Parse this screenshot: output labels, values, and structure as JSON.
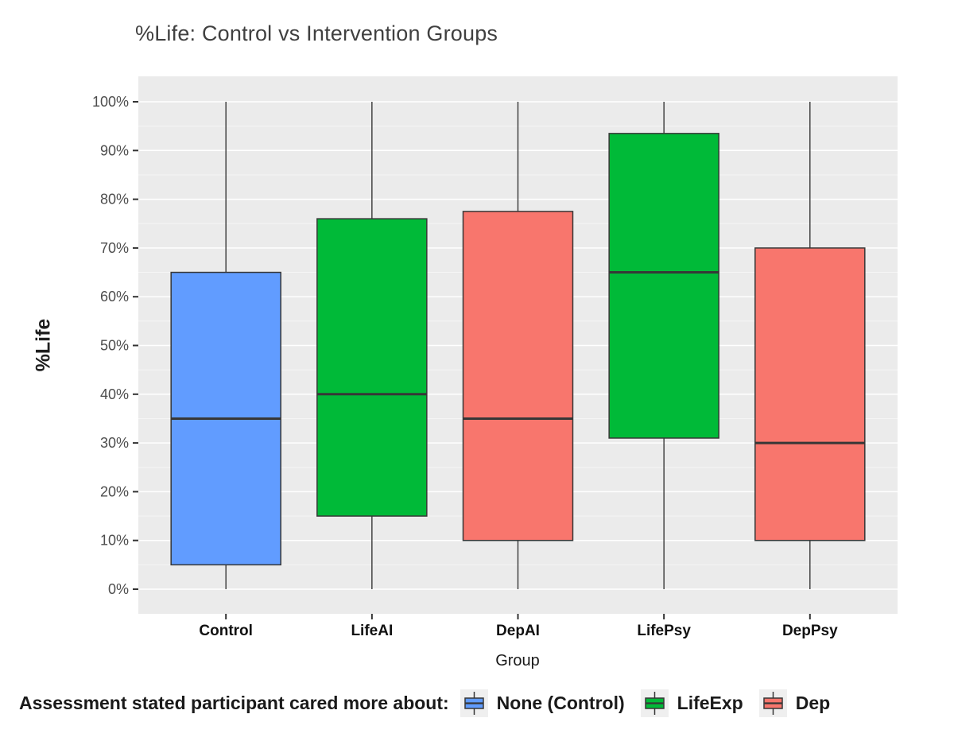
{
  "title": "%Life: Control vs Intervention Groups",
  "chart_data": {
    "type": "boxplot",
    "title": "%Life: Control vs Intervention Groups",
    "xlabel": "Group",
    "ylabel": "%Life",
    "categories": [
      "Control",
      "LifeAI",
      "DepAI",
      "LifePsy",
      "DepPsy"
    ],
    "y_ticks": [
      "0%",
      "10%",
      "20%",
      "30%",
      "40%",
      "50%",
      "60%",
      "70%",
      "80%",
      "90%",
      "100%"
    ],
    "ylim": [
      0,
      100
    ],
    "grid": "major white lines every 10%, faint minor lines every 5%, gray panel",
    "legend_position": "bottom",
    "boxes": [
      {
        "group": "Control",
        "condition": "None (Control)",
        "fill": "#619CFF",
        "whisker_low": 0,
        "q1": 5,
        "median": 35,
        "q3": 65,
        "whisker_high": 100
      },
      {
        "group": "LifeAI",
        "condition": "LifeExp",
        "fill": "#00BA38",
        "whisker_low": 0,
        "q1": 15,
        "median": 40,
        "q3": 76,
        "whisker_high": 100
      },
      {
        "group": "DepAI",
        "condition": "Dep",
        "fill": "#F8766D",
        "whisker_low": 0,
        "q1": 10,
        "median": 35,
        "q3": 77.5,
        "whisker_high": 100
      },
      {
        "group": "LifePsy",
        "condition": "LifeExp",
        "fill": "#00BA38",
        "whisker_low": 0,
        "q1": 31,
        "median": 65,
        "q3": 93.5,
        "whisker_high": 100
      },
      {
        "group": "DepPsy",
        "condition": "Dep",
        "fill": "#F8766D",
        "whisker_low": 0,
        "q1": 10,
        "median": 30,
        "q3": 70,
        "whisker_high": 100
      }
    ],
    "legend": {
      "title": "Assessment stated participant cared more about:",
      "items": [
        {
          "label": "None (Control)",
          "fill": "#619CFF"
        },
        {
          "label": "LifeExp",
          "fill": "#00BA38"
        },
        {
          "label": "Dep",
          "fill": "#F8766D"
        }
      ]
    },
    "colors": {
      "panel_background": "#EBEBEB",
      "grid_major": "#FFFFFF",
      "grid_minor": "#F5F5F5",
      "box_outline": "#373737",
      "y_tick_text": "#4D4D4D",
      "x_tick_text": "#111111",
      "axis_title_text": "#1A1A1A",
      "chart_title_text": "#404040",
      "legend_key_background": "#EFEFEF"
    }
  }
}
